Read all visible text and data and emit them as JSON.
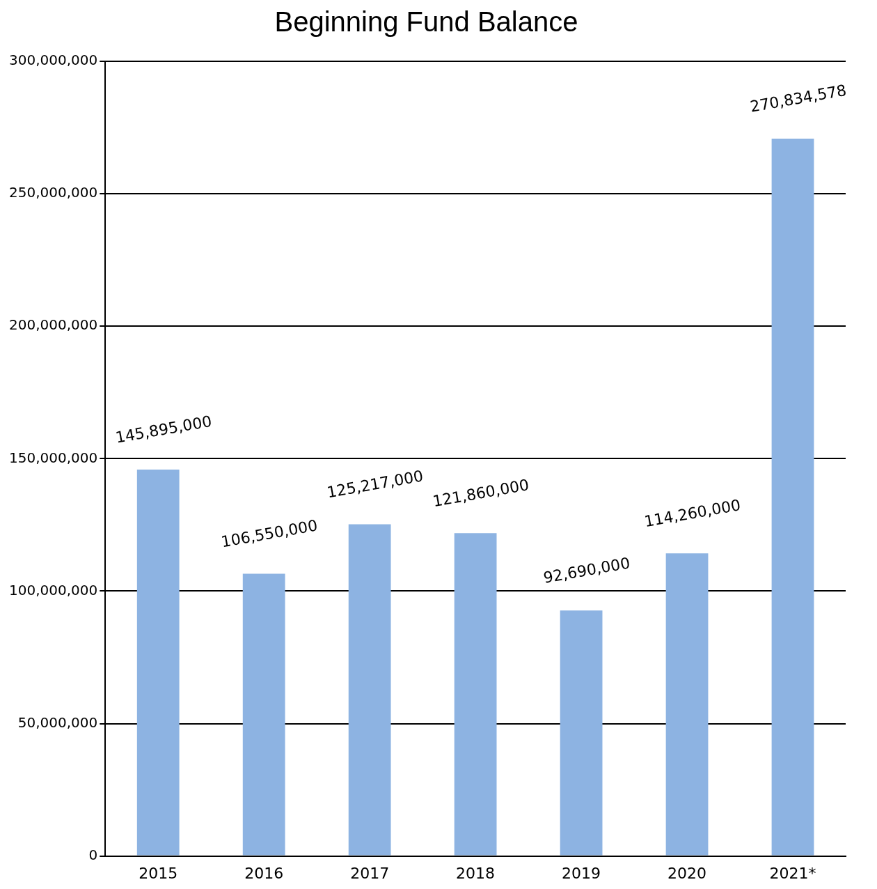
{
  "chart_data": {
    "type": "bar",
    "title": "Beginning Fund Balance",
    "categories": [
      "2015",
      "2016",
      "2017",
      "2018",
      "2019",
      "2020",
      "2021*"
    ],
    "values": [
      145895000,
      106550000,
      125217000,
      121860000,
      92690000,
      114260000,
      270834578
    ],
    "value_labels": [
      "145,895,000",
      "106,550,000",
      "125,217,000",
      "121,860,000",
      "92,690,000",
      "114,260,000",
      "270,834,578"
    ],
    "color": "#8db3e2",
    "ylim": [
      0,
      300000000
    ],
    "yticks": [
      {
        "value": 0,
        "label": "0"
      },
      {
        "value": 50000000,
        "label": "50,000,000"
      },
      {
        "value": 100000000,
        "label": "100,000,000"
      },
      {
        "value": 150000000,
        "label": "150,000,000"
      },
      {
        "value": 200000000,
        "label": "200,000,000"
      },
      {
        "value": 250000000,
        "label": "250,000,000"
      },
      {
        "value": 300000000,
        "label": "300,000,000"
      }
    ],
    "grid": "y",
    "legend": false
  }
}
